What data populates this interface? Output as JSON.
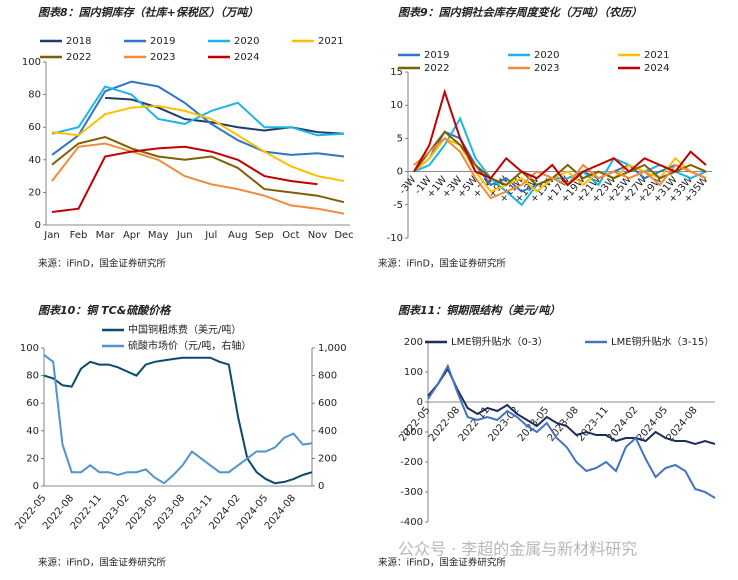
{
  "chart_data": [
    {
      "type": "line",
      "title": "图表8：国内铜库存（社库+保税区）（万吨）",
      "source": "来源：iFinD，国金证券研究所",
      "categories": [
        "Jan",
        "Feb",
        "Mar",
        "Apr",
        "May",
        "Jun",
        "Jul",
        "Aug",
        "Sep",
        "Oct",
        "Nov",
        "Dec"
      ],
      "ylim": [
        0,
        100
      ],
      "yticks": [
        0,
        20,
        40,
        60,
        80,
        100
      ],
      "series": [
        {
          "name": "2018",
          "color": "#1f3c6e",
          "values": [
            null,
            null,
            78,
            77,
            72,
            65,
            63,
            60,
            58,
            60,
            57,
            56
          ]
        },
        {
          "name": "2019",
          "color": "#2e75c6",
          "values": [
            43,
            55,
            82,
            88,
            85,
            75,
            62,
            52,
            45,
            43,
            44,
            42
          ]
        },
        {
          "name": "2020",
          "color": "#1eb4e6",
          "values": [
            56,
            60,
            85,
            80,
            65,
            62,
            70,
            75,
            60,
            60,
            55,
            56
          ]
        },
        {
          "name": "2021",
          "color": "#ffc000",
          "values": [
            57,
            55,
            68,
            72,
            73,
            70,
            65,
            55,
            45,
            36,
            30,
            27
          ]
        },
        {
          "name": "2022",
          "color": "#7f6000",
          "values": [
            37,
            50,
            54,
            47,
            42,
            40,
            42,
            35,
            22,
            20,
            18,
            14
          ]
        },
        {
          "name": "2023",
          "color": "#f08a3c",
          "values": [
            27,
            48,
            50,
            45,
            40,
            30,
            25,
            22,
            18,
            12,
            10,
            7
          ]
        },
        {
          "name": "2024",
          "color": "#c00000",
          "values": [
            8,
            10,
            42,
            45,
            47,
            48,
            45,
            40,
            30,
            27,
            25,
            null
          ]
        }
      ]
    },
    {
      "type": "line",
      "title": "图表9：国内铜社会库存周度变化（万吨）（农历）",
      "source": "来源：iFinD，国金证券研究所",
      "categories": [
        "-3W",
        "-1W",
        "+1W",
        "+3W",
        "+5W",
        "+7W",
        "+9W",
        "+11W",
        "+13W",
        "+15W",
        "+17W",
        "+19W",
        "+21W",
        "+23W",
        "+25W",
        "+27W",
        "+29W",
        "+31W",
        "+33W",
        "+35W"
      ],
      "ylim": [
        -10,
        15
      ],
      "yticks": [
        -10,
        -5,
        0,
        5,
        10,
        15
      ],
      "series": [
        {
          "name": "2019",
          "color": "#2e75c6",
          "values": [
            0,
            2,
            6,
            5,
            1,
            -2,
            -1,
            -3,
            -2,
            -1,
            -2,
            0,
            -1,
            0,
            1,
            -1,
            0,
            1,
            0,
            -1
          ]
        },
        {
          "name": "2020",
          "color": "#1eb4e6",
          "values": [
            0,
            1,
            4,
            8,
            2,
            -1,
            -3,
            -5,
            -2,
            -1,
            -1,
            0,
            -2,
            2,
            1,
            0,
            1,
            0,
            -1,
            0
          ]
        },
        {
          "name": "2021",
          "color": "#ffc000",
          "values": [
            0,
            2,
            5,
            4,
            0,
            -3,
            -2,
            -1,
            -3,
            -1,
            0,
            -2,
            0,
            -1,
            1,
            0,
            -1,
            2,
            0,
            -1
          ]
        },
        {
          "name": "2022",
          "color": "#7f6000",
          "values": [
            0,
            3,
            6,
            4,
            1,
            -1,
            -2,
            0,
            -2,
            -1,
            1,
            -1,
            0,
            -1,
            0,
            1,
            -1,
            0,
            1,
            0
          ]
        },
        {
          "name": "2023",
          "color": "#f08a3c",
          "values": [
            1,
            3,
            5,
            3,
            -1,
            -4,
            -3,
            -2,
            0,
            -1,
            -2,
            1,
            -1,
            0,
            -1,
            0,
            -2,
            1,
            0,
            -1
          ]
        },
        {
          "name": "2024",
          "color": "#c00000",
          "values": [
            0,
            4,
            12,
            5,
            0,
            -1,
            2,
            0,
            -1,
            1,
            -2,
            0,
            1,
            2,
            0,
            2,
            1,
            0,
            3,
            1
          ]
        }
      ]
    },
    {
      "type": "line",
      "title": "图表10：铜 TC&硫酸价格",
      "source": "来源：iFinD，国金证券研究所",
      "x": [
        "2022-05",
        "2022-06",
        "2022-07",
        "2022-08",
        "2022-09",
        "2022-10",
        "2022-11",
        "2022-12",
        "2023-01",
        "2023-02",
        "2023-03",
        "2023-04",
        "2023-05",
        "2023-06",
        "2023-07",
        "2023-08",
        "2023-09",
        "2023-10",
        "2023-11",
        "2023-12",
        "2024-01",
        "2024-02",
        "2024-03",
        "2024-04",
        "2024-05",
        "2024-06",
        "2024-07",
        "2024-08",
        "2024-09",
        "2024-10"
      ],
      "xlim": [
        "2022-05",
        "2024-10"
      ],
      "xticks": [
        "2022-05",
        "2022-08",
        "2022-11",
        "2023-02",
        "2023-05",
        "2023-08",
        "2023-11",
        "2024-02",
        "2024-05",
        "2024-08"
      ],
      "ylim": [
        0,
        100
      ],
      "yticks": [
        0,
        20,
        40,
        60,
        80,
        100
      ],
      "y2lim": [
        0,
        1000
      ],
      "y2ticks": [
        0,
        200,
        400,
        600,
        800,
        {
          "value": 1000,
          "label": "1,000"
        }
      ],
      "series": [
        {
          "name": "中国铜粗炼费（美元/吨）",
          "color": "#0b4a6e",
          "values": [
            80,
            78,
            73,
            72,
            85,
            90,
            88,
            88,
            86,
            83,
            80,
            88,
            90,
            91,
            92,
            93,
            93,
            93,
            93,
            90,
            88,
            50,
            20,
            10,
            5,
            2,
            3,
            5,
            8,
            10
          ]
        },
        {
          "name": "硫酸市场价（元/吨，右轴）",
          "color": "#4f93d1",
          "axis": "y2",
          "values": [
            950,
            900,
            300,
            100,
            100,
            150,
            100,
            100,
            80,
            100,
            100,
            120,
            60,
            20,
            80,
            150,
            250,
            200,
            150,
            100,
            100,
            150,
            200,
            250,
            250,
            280,
            350,
            380,
            300,
            310
          ]
        }
      ]
    },
    {
      "type": "line",
      "title": "图表11：铜期限结构（美元/吨）",
      "source": "来源：iFinD，国金证券研究所",
      "x": [
        "2022-05",
        "2022-06",
        "2022-07",
        "2022-08",
        "2022-09",
        "2022-10",
        "2022-11",
        "2022-12",
        "2023-01",
        "2023-02",
        "2023-03",
        "2023-04",
        "2023-05",
        "2023-06",
        "2023-07",
        "2023-08",
        "2023-09",
        "2023-10",
        "2023-11",
        "2023-12",
        "2024-01",
        "2024-02",
        "2024-03",
        "2024-04",
        "2024-05",
        "2024-06",
        "2024-07",
        "2024-08",
        "2024-09",
        "2024-10"
      ],
      "xlim": [
        "2022-05",
        "2024-10"
      ],
      "xticks": [
        "2022-05",
        "2022-08",
        "2022-11",
        "2023-02",
        "2023-05",
        "2023-08",
        "2023-11",
        "2024-02",
        "2024-05",
        "2024-08"
      ],
      "ylim": [
        -400,
        200
      ],
      "yticks": [
        -400,
        -300,
        -200,
        -100,
        0,
        100,
        200
      ],
      "series": [
        {
          "name": "LME铜升贴水（0-3）",
          "color": "#1f2d5c",
          "values": [
            20,
            60,
            110,
            40,
            -20,
            -40,
            -20,
            -30,
            -10,
            -40,
            -60,
            -80,
            -50,
            -70,
            -80,
            -110,
            -100,
            -110,
            -110,
            -130,
            -120,
            -120,
            -130,
            -100,
            -120,
            -130,
            -130,
            -140,
            -130,
            -140
          ]
        },
        {
          "name": "LME铜升贴水（3-15）",
          "color": "#4472c4",
          "values": [
            10,
            60,
            120,
            30,
            -50,
            -60,
            -50,
            -60,
            -30,
            -50,
            -80,
            -100,
            -70,
            -120,
            -150,
            -200,
            -230,
            -220,
            -200,
            -230,
            -150,
            -120,
            -190,
            -250,
            -220,
            -210,
            -230,
            -290,
            -300,
            -320
          ]
        }
      ]
    }
  ],
  "watermark": "公众号 · 李超的金属与新材料研究"
}
